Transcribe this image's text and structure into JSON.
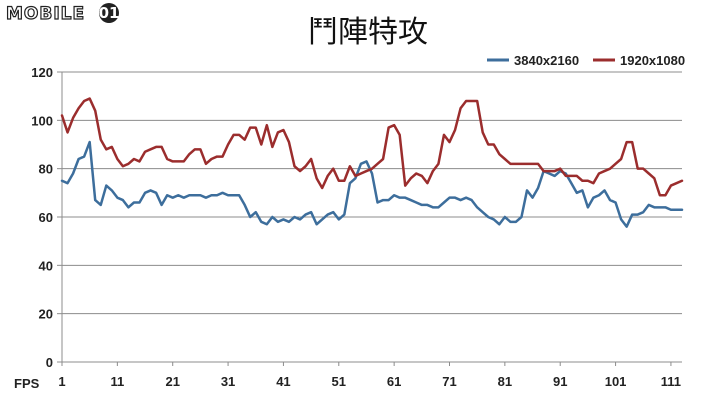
{
  "watermark": {
    "text": "MOBILE",
    "badge": "01"
  },
  "chart_data": {
    "type": "line",
    "title": "鬥陣特攻",
    "ylabel": "FPS",
    "xlabel": "",
    "ylim": [
      0,
      120
    ],
    "yticks": [
      0,
      20,
      40,
      60,
      80,
      100,
      120
    ],
    "xlim": [
      1,
      113
    ],
    "xticks": [
      1,
      11,
      21,
      31,
      41,
      51,
      61,
      71,
      81,
      91,
      101,
      111
    ],
    "grid": "horizontal",
    "legend_position": "top-right",
    "x_start": 1,
    "series": [
      {
        "name": "3840x2160",
        "color": "#3d6e9c",
        "values": [
          75,
          74,
          78,
          84,
          85,
          91,
          67,
          65,
          73,
          71,
          68,
          67,
          64,
          66,
          66,
          70,
          71,
          70,
          65,
          69,
          68,
          69,
          68,
          69,
          69,
          69,
          68,
          69,
          69,
          70,
          69,
          69,
          69,
          65,
          60,
          62,
          58,
          57,
          60,
          58,
          59,
          58,
          60,
          59,
          61,
          62,
          57,
          59,
          61,
          62,
          59,
          61,
          74,
          76,
          82,
          83,
          78,
          66,
          67,
          67,
          69,
          68,
          68,
          67,
          66,
          65,
          65,
          64,
          64,
          66,
          68,
          68,
          67,
          68,
          67,
          64,
          62,
          60,
          59,
          57,
          60,
          58,
          58,
          60,
          71,
          68,
          72,
          79,
          78,
          77,
          79,
          78,
          74,
          70,
          71,
          64,
          68,
          69,
          71,
          67,
          66,
          59,
          56,
          61,
          61,
          62,
          65,
          64,
          64,
          64,
          63,
          63,
          63
        ]
      },
      {
        "name": "1920x1080",
        "color": "#9b2d2d",
        "values": [
          102,
          95,
          101,
          105,
          108,
          109,
          104,
          92,
          88,
          89,
          84,
          81,
          82,
          84,
          83,
          87,
          88,
          89,
          89,
          84,
          83,
          83,
          83,
          86,
          88,
          88,
          82,
          84,
          85,
          85,
          90,
          94,
          94,
          92,
          97,
          97,
          90,
          98,
          89,
          95,
          96,
          91,
          81,
          79,
          81,
          84,
          76,
          72,
          77,
          80,
          75,
          75,
          81,
          77,
          78,
          79,
          80,
          82,
          84,
          97,
          98,
          94,
          73,
          76,
          78,
          77,
          74,
          79,
          82,
          94,
          91,
          96,
          105,
          108,
          108,
          108,
          95,
          90,
          90,
          86,
          84,
          82,
          82,
          82,
          82,
          82,
          82,
          79,
          79,
          79,
          80,
          77,
          77,
          77,
          75,
          75,
          74,
          78,
          79,
          80,
          82,
          84,
          91,
          91,
          80,
          80,
          78,
          76,
          69,
          69,
          73,
          74,
          75
        ]
      }
    ]
  }
}
